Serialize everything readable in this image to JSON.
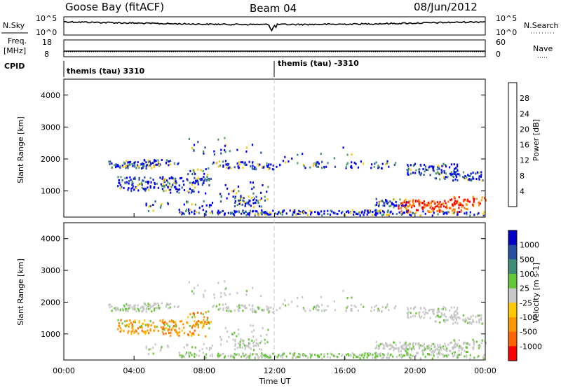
{
  "header": {
    "station": "Goose Bay (fitACF)",
    "beam": "Beam 04",
    "date": "08/Jun/2012"
  },
  "noise_panel": {
    "left_label": "N.Sky",
    "right_label": "N.Search",
    "left_ticks": [
      "10^5",
      "10^0"
    ],
    "right_ticks": [
      "10^5",
      "10^0"
    ]
  },
  "freq_panel": {
    "left_label_1": "Freq.",
    "left_label_2": "[MHz]",
    "right_label": "Nave",
    "left_ticks": [
      "18",
      "8"
    ],
    "right_ticks": [
      "60",
      "0"
    ]
  },
  "cpid_panel": {
    "label": "CPID",
    "segment_1": "themis (tau) 3310",
    "segment_2": "themis (tau) -3310"
  },
  "time_axis": {
    "label": "Time UT",
    "ticks": [
      "00:00",
      "04:00",
      "08:00",
      "12:00",
      "16:00",
      "20:00",
      "00:00"
    ]
  },
  "colors": {
    "power": [
      "#0000ff",
      "#2850a0",
      "#3c8c78",
      "#5aa05a",
      "#ffc800",
      "#ff9600",
      "#ff6400",
      "#ff0000"
    ],
    "velocity": [
      "#ff0000",
      "#ff6400",
      "#ff9600",
      "#ffc800",
      "#c8c8c8",
      "#64c832",
      "#3c8c78",
      "#2850a0",
      "#0000c8"
    ]
  },
  "chart_data": [
    {
      "type": "heatmap",
      "name": "power",
      "ylabel": "Slant Range [km]",
      "xlabel": "",
      "xlim_hours": [
        0,
        24
      ],
      "ylim_km": [
        180,
        4500
      ],
      "yticks": [
        "1000",
        "2000",
        "3000",
        "4000"
      ],
      "colorbar": {
        "label": "Power [dB]",
        "ticks": [
          "4",
          "8",
          "12",
          "16",
          "20",
          "24",
          "28"
        ],
        "range": [
          0,
          30
        ]
      }
    },
    {
      "type": "heatmap",
      "name": "velocity",
      "ylabel": "Slant Range [km]",
      "xlabel": "Time UT",
      "xlim_hours": [
        0,
        24
      ],
      "ylim_km": [
        180,
        4500
      ],
      "yticks": [
        "1000",
        "2000",
        "3000",
        "4000"
      ],
      "colorbar": {
        "label": "Velocity [m s-1]",
        "ticks": [
          "1000",
          "500",
          "100",
          "25",
          "-25",
          "-100",
          "-500",
          "-1000"
        ]
      }
    }
  ]
}
